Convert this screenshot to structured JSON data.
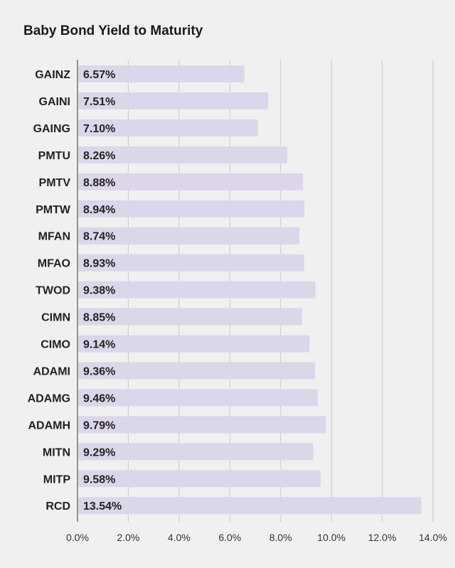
{
  "chart_data": {
    "type": "bar",
    "orientation": "horizontal",
    "title": "Baby Bond Yield to Maturity",
    "categories": [
      "GAINZ",
      "GAINI",
      "GAING",
      "PMTU",
      "PMTV",
      "PMTW",
      "MFAN",
      "MFAO",
      "TWOD",
      "CIMN",
      "CIMO",
      "ADAMI",
      "ADAMG",
      "ADAMH",
      "MITN",
      "MITP",
      "RCD"
    ],
    "values": [
      6.57,
      7.51,
      7.1,
      8.26,
      8.88,
      8.94,
      8.74,
      8.93,
      9.38,
      8.85,
      9.14,
      9.36,
      9.46,
      9.79,
      9.29,
      9.58,
      13.54
    ],
    "value_labels": [
      "6.57%",
      "7.51%",
      "7.10%",
      "8.26%",
      "8.88%",
      "8.94%",
      "8.74%",
      "8.93%",
      "9.38%",
      "8.85%",
      "9.14%",
      "9.36%",
      "9.46%",
      "9.79%",
      "9.29%",
      "9.58%",
      "13.54%"
    ],
    "xlim": [
      0,
      14
    ],
    "x_ticks": [
      0,
      2,
      4,
      6,
      8,
      10,
      12,
      14
    ],
    "x_tick_labels": [
      "0.0%",
      "2.0%",
      "4.0%",
      "6.0%",
      "8.0%",
      "10.0%",
      "12.0%",
      "14.0%"
    ],
    "xlabel": "",
    "ylabel": "",
    "grid": true,
    "bar_color": "#dcd6ea",
    "grid_color": "#c9c9c9",
    "background_color": "#f0f0f0"
  }
}
